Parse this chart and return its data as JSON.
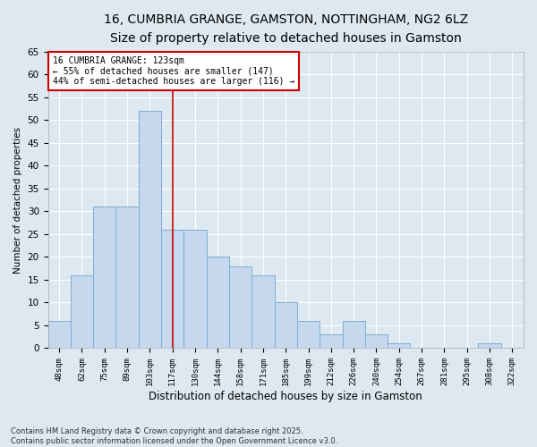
{
  "title": "16, CUMBRIA GRANGE, GAMSTON, NOTTINGHAM, NG2 6LZ",
  "subtitle": "Size of property relative to detached houses in Gamston",
  "xlabel": "Distribution of detached houses by size in Gamston",
  "ylabel": "Number of detached properties",
  "bar_labels": [
    "48sqm",
    "62sqm",
    "75sqm",
    "89sqm",
    "103sqm",
    "117sqm",
    "130sqm",
    "144sqm",
    "158sqm",
    "171sqm",
    "185sqm",
    "199sqm",
    "212sqm",
    "226sqm",
    "240sqm",
    "254sqm",
    "267sqm",
    "281sqm",
    "295sqm",
    "308sqm",
    "322sqm"
  ],
  "bar_values": [
    6,
    16,
    31,
    31,
    52,
    26,
    26,
    20,
    18,
    16,
    10,
    6,
    3,
    6,
    3,
    1,
    0,
    0,
    0,
    1,
    0
  ],
  "bar_color": "#c5d8ed",
  "bar_edge_color": "#7bafd4",
  "ylim": [
    0,
    65
  ],
  "yticks": [
    0,
    5,
    10,
    15,
    20,
    25,
    30,
    35,
    40,
    45,
    50,
    55,
    60,
    65
  ],
  "vline_x": 5.0,
  "vline_color": "#cc0000",
  "annotation_text": "16 CUMBRIA GRANGE: 123sqm\n← 55% of detached houses are smaller (147)\n44% of semi-detached houses are larger (116) →",
  "annotation_box_color": "#ffffff",
  "annotation_box_edge": "#cc0000",
  "footer_line1": "Contains HM Land Registry data © Crown copyright and database right 2025.",
  "footer_line2": "Contains public sector information licensed under the Open Government Licence v3.0.",
  "background_color": "#dde8f0",
  "plot_bg_color": "#dde8f0",
  "grid_color": "#ffffff",
  "title_fontsize": 10,
  "subtitle_fontsize": 9
}
